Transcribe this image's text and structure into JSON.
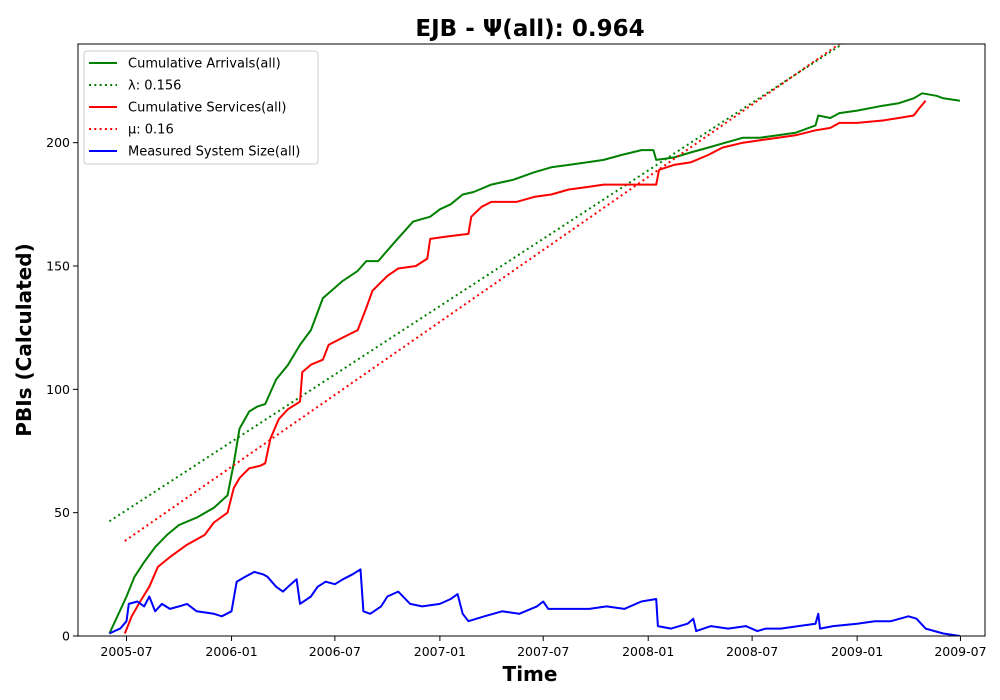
{
  "chart_data": {
    "type": "line",
    "title": "EJB -  Ψ(all): 0.964",
    "xlabel": "Time",
    "ylabel": "PBIs (Calculated)",
    "x_ticks": [
      "2005-07",
      "2006-01",
      "2006-07",
      "2007-01",
      "2007-07",
      "2008-01",
      "2008-07",
      "2009-01",
      "2009-07"
    ],
    "y_ticks": [
      "0",
      "50",
      "100",
      "150",
      "200"
    ],
    "xlim": [
      "2005-04-07",
      "2009-08-13"
    ],
    "ylim": [
      0,
      240
    ],
    "grid": false,
    "legend_position": "top-left",
    "series": [
      {
        "name": "Cumulative Arrivals(all)",
        "color": "#008000",
        "style": "solid",
        "points": [
          [
            "2005-06-01",
            1
          ],
          [
            "2005-06-15",
            8
          ],
          [
            "2005-07-01",
            16
          ],
          [
            "2005-07-15",
            24
          ],
          [
            "2005-08-01",
            30
          ],
          [
            "2005-08-20",
            36
          ],
          [
            "2005-09-10",
            41
          ],
          [
            "2005-10-01",
            45
          ],
          [
            "2005-11-01",
            48
          ],
          [
            "2005-12-01",
            52
          ],
          [
            "2005-12-25",
            57
          ],
          [
            "2006-01-05",
            70
          ],
          [
            "2006-01-15",
            84
          ],
          [
            "2006-02-01",
            91
          ],
          [
            "2006-02-15",
            93
          ],
          [
            "2006-03-01",
            94
          ],
          [
            "2006-03-20",
            104
          ],
          [
            "2006-04-10",
            110
          ],
          [
            "2006-05-01",
            118
          ],
          [
            "2006-05-20",
            124
          ],
          [
            "2006-06-10",
            137
          ],
          [
            "2006-06-25",
            140
          ],
          [
            "2006-07-15",
            144
          ],
          [
            "2006-08-10",
            148
          ],
          [
            "2006-08-25",
            152
          ],
          [
            "2006-09-15",
            152
          ],
          [
            "2006-10-15",
            160
          ],
          [
            "2006-11-15",
            168
          ],
          [
            "2006-12-15",
            170
          ],
          [
            "2007-01-01",
            173
          ],
          [
            "2007-01-20",
            175
          ],
          [
            "2007-02-10",
            179
          ],
          [
            "2007-03-01",
            180
          ],
          [
            "2007-04-01",
            183
          ],
          [
            "2007-05-10",
            185
          ],
          [
            "2007-06-15",
            188
          ],
          [
            "2007-07-15",
            190
          ],
          [
            "2007-08-15",
            191
          ],
          [
            "2007-09-15",
            192
          ],
          [
            "2007-10-15",
            193
          ],
          [
            "2007-11-15",
            195
          ],
          [
            "2007-12-20",
            197
          ],
          [
            "2008-01-10",
            197
          ],
          [
            "2008-01-15",
            193
          ],
          [
            "2008-02-15",
            194
          ],
          [
            "2008-03-15",
            196
          ],
          [
            "2008-04-15",
            198
          ],
          [
            "2008-05-15",
            200
          ],
          [
            "2008-06-15",
            202
          ],
          [
            "2008-07-15",
            202
          ],
          [
            "2008-08-15",
            203
          ],
          [
            "2008-09-15",
            204
          ],
          [
            "2008-10-20",
            207
          ],
          [
            "2008-10-25",
            211
          ],
          [
            "2008-11-15",
            210
          ],
          [
            "2008-12-01",
            212
          ],
          [
            "2009-01-01",
            213
          ],
          [
            "2009-02-15",
            215
          ],
          [
            "2009-03-15",
            216
          ],
          [
            "2009-04-10",
            218
          ],
          [
            "2009-04-25",
            220
          ],
          [
            "2009-05-20",
            219
          ],
          [
            "2009-06-01",
            218
          ],
          [
            "2009-06-30",
            217
          ]
        ]
      },
      {
        "name": "λ: 0.156",
        "color": "#008000",
        "style": "dotted",
        "points": [
          [
            "2005-06-01",
            46.5
          ],
          [
            "2009-06-30",
            271
          ]
        ]
      },
      {
        "name": "Cumulative Services(all)",
        "color": "#ff0000",
        "style": "solid",
        "points": [
          [
            "2005-06-28",
            1
          ],
          [
            "2005-07-10",
            8
          ],
          [
            "2005-07-25",
            14
          ],
          [
            "2005-08-10",
            20
          ],
          [
            "2005-08-25",
            28
          ],
          [
            "2005-09-15",
            32
          ],
          [
            "2005-10-15",
            37
          ],
          [
            "2005-11-15",
            41
          ],
          [
            "2005-12-01",
            46
          ],
          [
            "2005-12-25",
            50
          ],
          [
            "2006-01-05",
            60
          ],
          [
            "2006-01-15",
            64
          ],
          [
            "2006-02-01",
            68
          ],
          [
            "2006-02-20",
            69
          ],
          [
            "2006-03-01",
            70
          ],
          [
            "2006-03-10",
            80
          ],
          [
            "2006-03-25",
            88
          ],
          [
            "2006-04-10",
            92
          ],
          [
            "2006-05-01",
            95
          ],
          [
            "2006-05-05",
            107
          ],
          [
            "2006-05-20",
            110
          ],
          [
            "2006-06-10",
            112
          ],
          [
            "2006-06-20",
            118
          ],
          [
            "2006-07-15",
            121
          ],
          [
            "2006-08-10",
            124
          ],
          [
            "2006-08-25",
            133
          ],
          [
            "2006-09-05",
            140
          ],
          [
            "2006-10-01",
            146
          ],
          [
            "2006-10-20",
            149
          ],
          [
            "2006-11-20",
            150
          ],
          [
            "2006-12-10",
            153
          ],
          [
            "2006-12-15",
            161
          ],
          [
            "2007-01-15",
            162
          ],
          [
            "2007-02-20",
            163
          ],
          [
            "2007-02-25",
            170
          ],
          [
            "2007-03-15",
            174
          ],
          [
            "2007-04-01",
            176
          ],
          [
            "2007-05-15",
            176
          ],
          [
            "2007-06-15",
            178
          ],
          [
            "2007-07-15",
            179
          ],
          [
            "2007-08-15",
            181
          ],
          [
            "2007-09-15",
            182
          ],
          [
            "2007-10-15",
            183
          ],
          [
            "2007-12-01",
            183
          ],
          [
            "2008-01-15",
            183
          ],
          [
            "2008-01-20",
            189
          ],
          [
            "2008-02-15",
            191
          ],
          [
            "2008-03-15",
            192
          ],
          [
            "2008-04-15",
            195
          ],
          [
            "2008-05-10",
            198
          ],
          [
            "2008-06-15",
            200
          ],
          [
            "2008-07-15",
            201
          ],
          [
            "2008-08-15",
            202
          ],
          [
            "2008-09-15",
            203
          ],
          [
            "2008-10-20",
            205
          ],
          [
            "2008-11-15",
            206
          ],
          [
            "2008-12-01",
            208
          ],
          [
            "2009-01-01",
            208
          ],
          [
            "2009-02-15",
            209
          ],
          [
            "2009-03-15",
            210
          ],
          [
            "2009-04-10",
            211
          ],
          [
            "2009-04-20",
            214
          ],
          [
            "2009-05-01",
            217
          ]
        ]
      },
      {
        "name": "μ: 0.16",
        "color": "#ff0000",
        "style": "dotted",
        "points": [
          [
            "2005-06-28",
            38.5
          ],
          [
            "2009-06-30",
            274
          ]
        ]
      },
      {
        "name": "Measured System Size(all)",
        "color": "#0000ff",
        "style": "solid",
        "points": [
          [
            "2005-06-01",
            1
          ],
          [
            "2005-06-10",
            2
          ],
          [
            "2005-06-20",
            3
          ],
          [
            "2005-07-01",
            6
          ],
          [
            "2005-07-05",
            13
          ],
          [
            "2005-07-20",
            14
          ],
          [
            "2005-08-01",
            12
          ],
          [
            "2005-08-10",
            16
          ],
          [
            "2005-08-20",
            10
          ],
          [
            "2005-09-01",
            13
          ],
          [
            "2005-09-15",
            11
          ],
          [
            "2005-10-01",
            12
          ],
          [
            "2005-10-15",
            13
          ],
          [
            "2005-11-01",
            10
          ],
          [
            "2005-12-01",
            9
          ],
          [
            "2005-12-15",
            8
          ],
          [
            "2006-01-01",
            10
          ],
          [
            "2006-01-10",
            22
          ],
          [
            "2006-01-25",
            24
          ],
          [
            "2006-02-10",
            26
          ],
          [
            "2006-02-25",
            25
          ],
          [
            "2006-03-05",
            24
          ],
          [
            "2006-03-20",
            20
          ],
          [
            "2006-04-01",
            18
          ],
          [
            "2006-04-15",
            21
          ],
          [
            "2006-04-25",
            23
          ],
          [
            "2006-05-01",
            13
          ],
          [
            "2006-05-20",
            16
          ],
          [
            "2006-06-01",
            20
          ],
          [
            "2006-06-15",
            22
          ],
          [
            "2006-07-01",
            21
          ],
          [
            "2006-07-15",
            23
          ],
          [
            "2006-08-01",
            25
          ],
          [
            "2006-08-15",
            27
          ],
          [
            "2006-08-20",
            10
          ],
          [
            "2006-09-01",
            9
          ],
          [
            "2006-09-20",
            12
          ],
          [
            "2006-10-01",
            16
          ],
          [
            "2006-10-20",
            18
          ],
          [
            "2006-11-10",
            13
          ],
          [
            "2006-12-01",
            12
          ],
          [
            "2007-01-01",
            13
          ],
          [
            "2007-01-20",
            15
          ],
          [
            "2007-02-01",
            17
          ],
          [
            "2007-02-10",
            9
          ],
          [
            "2007-02-20",
            6
          ],
          [
            "2007-03-20",
            8
          ],
          [
            "2007-04-20",
            10
          ],
          [
            "2007-05-20",
            9
          ],
          [
            "2007-06-20",
            12
          ],
          [
            "2007-07-01",
            14
          ],
          [
            "2007-07-10",
            11
          ],
          [
            "2007-08-20",
            11
          ],
          [
            "2007-09-20",
            11
          ],
          [
            "2007-10-20",
            12
          ],
          [
            "2007-11-20",
            11
          ],
          [
            "2007-12-20",
            14
          ],
          [
            "2008-01-15",
            15
          ],
          [
            "2008-01-18",
            4
          ],
          [
            "2008-02-10",
            3
          ],
          [
            "2008-03-10",
            5
          ],
          [
            "2008-03-20",
            7
          ],
          [
            "2008-03-25",
            2
          ],
          [
            "2008-04-20",
            4
          ],
          [
            "2008-05-20",
            3
          ],
          [
            "2008-06-20",
            4
          ],
          [
            "2008-07-10",
            2
          ],
          [
            "2008-07-25",
            3
          ],
          [
            "2008-08-20",
            3
          ],
          [
            "2008-09-20",
            4
          ],
          [
            "2008-10-20",
            5
          ],
          [
            "2008-10-25",
            9
          ],
          [
            "2008-10-28",
            3
          ],
          [
            "2008-11-20",
            4
          ],
          [
            "2009-01-01",
            5
          ],
          [
            "2009-02-01",
            6
          ],
          [
            "2009-03-01",
            6
          ],
          [
            "2009-04-01",
            8
          ],
          [
            "2009-04-15",
            7
          ],
          [
            "2009-05-01",
            3
          ],
          [
            "2009-06-01",
            1
          ],
          [
            "2009-06-30",
            0
          ]
        ]
      }
    ]
  }
}
